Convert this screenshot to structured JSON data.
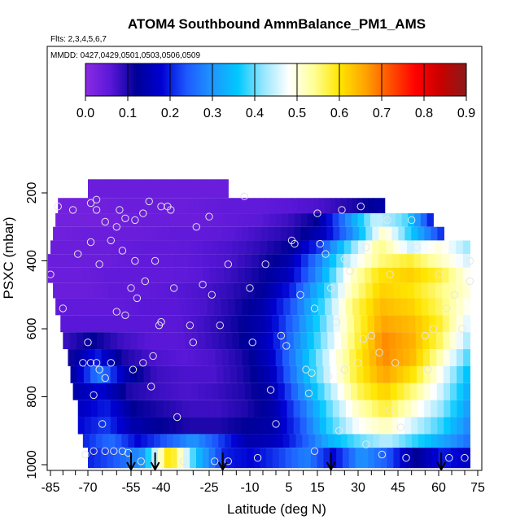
{
  "chart_data": {
    "type": "heatmap",
    "title": "ATOM4 Southbound AmmBalance_PM1_AMS",
    "subtitle_flights": "Flts: 2,3,4,5,6,7",
    "subtitle_dates": "MMDD: 0427,0429,0501,0503,0506,0509",
    "xlabel": "Latitude (deg N)",
    "ylabel": "PSXC (mbar)",
    "xlim": [
      -87,
      75
    ],
    "ylim": [
      1010,
      100
    ],
    "xticks": [
      "-85",
      "-70",
      "-55",
      "-40",
      "-25",
      "-10",
      "5",
      "15",
      "30",
      "45",
      "60",
      "75"
    ],
    "yticks": [
      "200",
      "400",
      "600",
      "800",
      "1000"
    ],
    "colorbar": {
      "range": [
        0,
        0.9
      ],
      "ticks": [
        "0.0",
        "0.1",
        "0.2",
        "0.3",
        "0.4",
        "0.5",
        "0.6",
        "0.7",
        "0.8",
        "0.9"
      ],
      "colors": [
        "#8a2be2",
        "#5a17d8",
        "#000096",
        "#0000d2",
        "#1e5aff",
        "#1e96ff",
        "#00c8ff",
        "#96e6ff",
        "#ffffff",
        "#ffff96",
        "#ffe600",
        "#ffa500",
        "#ff5000",
        "#ff0000",
        "#c80000",
        "#8b1a1a"
      ]
    },
    "profile_markers_lat": [
      -55,
      -43,
      -20,
      20,
      61
    ],
    "layers": [
      {
        "p": [
          160,
          215
        ],
        "lat": [
          -70,
          -18
        ],
        "v": [
          0.04,
          0.04
        ]
      },
      {
        "p": [
          215,
          260
        ],
        "lat": [
          -82,
          40
        ],
        "v": [
          0.03,
          0.03,
          0.04,
          0.04,
          0.04,
          0.05,
          0.05,
          0.06,
          0.07,
          0.1,
          0.14
        ]
      },
      {
        "p": [
          260,
          300
        ],
        "lat": [
          -83,
          58
        ],
        "v": [
          0.03,
          0.03,
          0.03,
          0.04,
          0.04,
          0.04,
          0.05,
          0.06,
          0.08,
          0.12,
          0.28,
          0.45,
          0.4,
          0.18
        ]
      },
      {
        "p": [
          300,
          340
        ],
        "lat": [
          -84,
          62
        ],
        "v": [
          0.03,
          0.04,
          0.04,
          0.04,
          0.05,
          0.05,
          0.06,
          0.08,
          0.1,
          0.16,
          0.3,
          0.52,
          0.35,
          0.2
        ]
      },
      {
        "p": [
          340,
          380
        ],
        "lat": [
          -85,
          72
        ],
        "v": [
          0.04,
          0.04,
          0.04,
          0.05,
          0.05,
          0.06,
          0.07,
          0.09,
          0.12,
          0.22,
          0.4,
          0.55,
          0.45,
          0.5,
          0.42
        ]
      },
      {
        "p": [
          380,
          420
        ],
        "lat": [
          -86,
          72
        ],
        "v": [
          0.04,
          0.04,
          0.04,
          0.05,
          0.05,
          0.06,
          0.07,
          0.1,
          0.14,
          0.28,
          0.45,
          0.55,
          0.58,
          0.52,
          0.45
        ]
      },
      {
        "p": [
          420,
          465
        ],
        "lat": [
          -86,
          72
        ],
        "v": [
          0.04,
          0.04,
          0.05,
          0.05,
          0.05,
          0.06,
          0.08,
          0.11,
          0.16,
          0.3,
          0.5,
          0.6,
          0.62,
          0.58,
          0.48
        ]
      },
      {
        "p": [
          465,
          510
        ],
        "lat": [
          -84,
          72
        ],
        "v": [
          0.04,
          0.04,
          0.05,
          0.05,
          0.06,
          0.07,
          0.09,
          0.12,
          0.2,
          0.35,
          0.52,
          0.62,
          0.6,
          0.55,
          0.5
        ]
      },
      {
        "p": [
          510,
          560
        ],
        "lat": [
          -83,
          72
        ],
        "v": [
          0.05,
          0.05,
          0.05,
          0.06,
          0.06,
          0.07,
          0.1,
          0.14,
          0.24,
          0.38,
          0.55,
          0.64,
          0.62,
          0.56,
          0.48
        ]
      },
      {
        "p": [
          560,
          610
        ],
        "lat": [
          -81,
          72
        ],
        "v": [
          0.06,
          0.06,
          0.06,
          0.06,
          0.06,
          0.08,
          0.11,
          0.15,
          0.26,
          0.4,
          0.55,
          0.66,
          0.64,
          0.58,
          0.45
        ]
      },
      {
        "p": [
          610,
          660
        ],
        "lat": [
          -80,
          72
        ],
        "v": [
          0.08,
          0.12,
          0.08,
          0.06,
          0.06,
          0.08,
          0.11,
          0.16,
          0.28,
          0.42,
          0.56,
          0.68,
          0.65,
          0.56,
          0.42
        ]
      },
      {
        "p": [
          660,
          710
        ],
        "lat": [
          -78,
          72
        ],
        "v": [
          0.1,
          0.2,
          0.1,
          0.07,
          0.06,
          0.07,
          0.1,
          0.16,
          0.3,
          0.45,
          0.58,
          0.68,
          0.64,
          0.52,
          0.38
        ]
      },
      {
        "p": [
          710,
          760
        ],
        "lat": [
          -77,
          72
        ],
        "v": [
          0.12,
          0.28,
          0.14,
          0.08,
          0.07,
          0.07,
          0.1,
          0.15,
          0.3,
          0.45,
          0.58,
          0.66,
          0.6,
          0.48,
          0.34
        ]
      },
      {
        "p": [
          760,
          810
        ],
        "lat": [
          -76,
          72
        ],
        "v": [
          0.14,
          0.18,
          0.1,
          0.08,
          0.07,
          0.08,
          0.1,
          0.14,
          0.28,
          0.42,
          0.56,
          0.62,
          0.55,
          0.45,
          0.32
        ]
      },
      {
        "p": [
          810,
          860
        ],
        "lat": [
          -74,
          72
        ],
        "v": [
          0.16,
          0.2,
          0.12,
          0.1,
          0.08,
          0.08,
          0.1,
          0.14,
          0.26,
          0.4,
          0.52,
          0.58,
          0.5,
          0.42,
          0.3
        ]
      },
      {
        "p": [
          860,
          910
        ],
        "lat": [
          -74,
          72
        ],
        "v": [
          0.18,
          0.22,
          0.14,
          0.12,
          0.1,
          0.1,
          0.12,
          0.14,
          0.24,
          0.38,
          0.48,
          0.52,
          0.45,
          0.38,
          0.28
        ]
      },
      {
        "p": [
          910,
          950
        ],
        "lat": [
          -72,
          72
        ],
        "v": [
          0.2,
          0.26,
          0.18,
          0.24,
          0.3,
          0.22,
          0.14,
          0.16,
          0.24,
          0.34,
          0.4,
          0.44,
          0.38,
          0.32,
          0.26
        ]
      },
      {
        "p": [
          950,
          1010
        ],
        "lat": [
          -70,
          72
        ],
        "v": [
          0.2,
          0.24,
          0.3,
          0.62,
          0.35,
          0.2,
          0.18,
          0.22,
          0.28,
          0.18,
          0.3,
          0.24,
          0.12,
          0.2,
          0.16
        ]
      }
    ],
    "points": [
      [
        -85,
        440
      ],
      [
        -82,
        240
      ],
      [
        -80,
        540
      ],
      [
        -76,
        250
      ],
      [
        -74,
        380
      ],
      [
        -72,
        700
      ],
      [
        -71,
        970
      ],
      [
        -70,
        640
      ],
      [
        -69,
        230
      ],
      [
        -69,
        345
      ],
      [
        -69,
        700
      ],
      [
        -68,
        795
      ],
      [
        -68,
        960
      ],
      [
        -67,
        220
      ],
      [
        -67,
        250
      ],
      [
        -67,
        700
      ],
      [
        -66,
        410
      ],
      [
        -66,
        720
      ],
      [
        -65,
        880
      ],
      [
        -64,
        745
      ],
      [
        -64,
        285
      ],
      [
        -64,
        960
      ],
      [
        -62,
        340
      ],
      [
        -62,
        700
      ],
      [
        -61,
        960
      ],
      [
        -60,
        300
      ],
      [
        -60,
        550
      ],
      [
        -59,
        250
      ],
      [
        -58,
        370
      ],
      [
        -58,
        960
      ],
      [
        -57,
        275
      ],
      [
        -57,
        560
      ],
      [
        -56,
        965
      ],
      [
        -55,
        480
      ],
      [
        -54,
        720
      ],
      [
        -53,
        280
      ],
      [
        -53,
        400
      ],
      [
        -52,
        510
      ],
      [
        -50,
        990
      ],
      [
        -49,
        260
      ],
      [
        -49,
        700
      ],
      [
        -48,
        460
      ],
      [
        -46,
        225
      ],
      [
        -45,
        770
      ],
      [
        -44,
        680
      ],
      [
        -43,
        400
      ],
      [
        -43,
        1000
      ],
      [
        -41,
        590
      ],
      [
        -40,
        240
      ],
      [
        -40,
        580
      ],
      [
        -38,
        240
      ],
      [
        -37,
        250
      ],
      [
        -36,
        480
      ],
      [
        -35,
        860
      ],
      [
        -33,
        990
      ],
      [
        -31,
        590
      ],
      [
        -30,
        640
      ],
      [
        -29,
        300
      ],
      [
        -27,
        470
      ],
      [
        -25,
        270
      ],
      [
        -24,
        500
      ],
      [
        -23,
        990
      ],
      [
        -21,
        590
      ],
      [
        -18,
        410
      ],
      [
        -18,
        990
      ],
      [
        -12,
        210
      ],
      [
        -10,
        480
      ],
      [
        -9,
        640
      ],
      [
        -7,
        980
      ],
      [
        -4,
        410
      ],
      [
        -2,
        780
      ],
      [
        0,
        880
      ],
      [
        2,
        620
      ],
      [
        4,
        650
      ],
      [
        6,
        340
      ],
      [
        7,
        350
      ],
      [
        9,
        500
      ],
      [
        11,
        720
      ],
      [
        12,
        790
      ],
      [
        13,
        730
      ],
      [
        14,
        540
      ],
      [
        14,
        960
      ],
      [
        15,
        260
      ],
      [
        16,
        350
      ],
      [
        18,
        380
      ],
      [
        19,
        740
      ],
      [
        20,
        480
      ],
      [
        22,
        580
      ],
      [
        23,
        900
      ],
      [
        24,
        250
      ],
      [
        25,
        395
      ],
      [
        25,
        720
      ],
      [
        27,
        430
      ],
      [
        30,
        700
      ],
      [
        31,
        240
      ],
      [
        32,
        630
      ],
      [
        33,
        360
      ],
      [
        33,
        940
      ],
      [
        35,
        620
      ],
      [
        38,
        670
      ],
      [
        39,
        970
      ],
      [
        41,
        280
      ],
      [
        42,
        440
      ],
      [
        42,
        840
      ],
      [
        44,
        700
      ],
      [
        46,
        890
      ],
      [
        48,
        980
      ],
      [
        50,
        280
      ],
      [
        52,
        360
      ],
      [
        55,
        620
      ],
      [
        56,
        720
      ],
      [
        58,
        600
      ],
      [
        60,
        440
      ],
      [
        63,
        540
      ],
      [
        64,
        980
      ],
      [
        66,
        500
      ],
      [
        69,
        600
      ],
      [
        70,
        980
      ],
      [
        72,
        400
      ],
      [
        72,
        460
      ]
    ]
  }
}
